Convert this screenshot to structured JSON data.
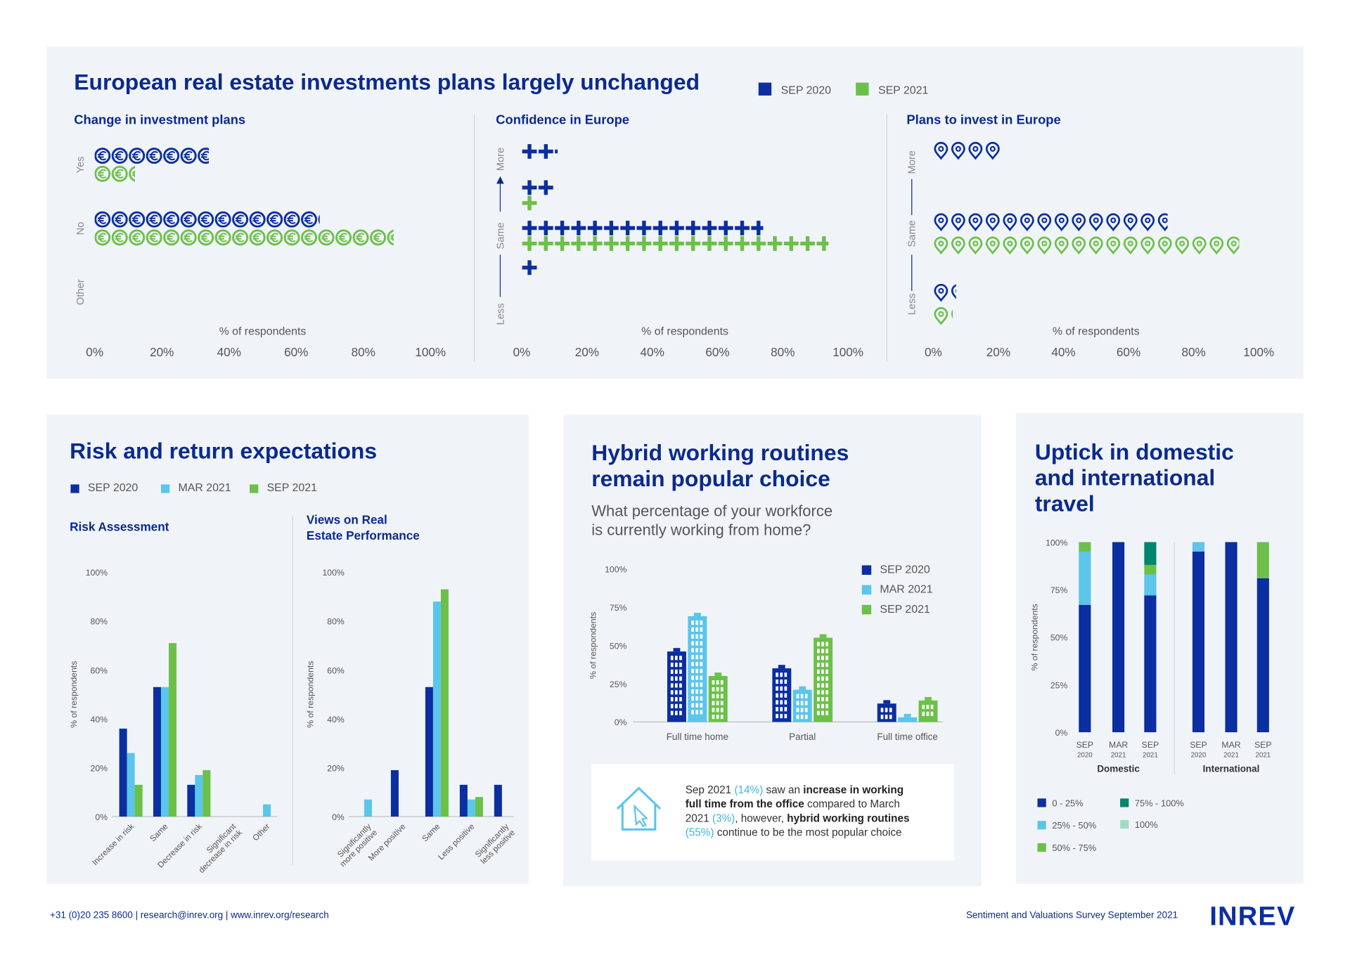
{
  "header": {
    "title": "European real estate investments plans largely unchanged"
  },
  "risk_title": "Risk and return expectations",
  "footer": {
    "contact": "+31 (0)20 235 8600 | research@inrev.org | www.inrev.org/research",
    "survey": "Sentiment and Valuations Survey September 2021",
    "logo": "INREV"
  },
  "chart_data": [
    {
      "type": "pictograph",
      "title": "Change in investment plans",
      "icon": "euro",
      "categories": [
        "Yes",
        "No",
        "Other"
      ],
      "series": [
        {
          "name": "SEP 2020",
          "color": "#0b2ea0",
          "values": [
            34,
            67,
            0
          ]
        },
        {
          "name": "SEP 2021",
          "color": "#6cc04a",
          "values": [
            12,
            89,
            0
          ]
        }
      ],
      "xlim": [
        0,
        100
      ],
      "xticks": [
        {
          "value": 0,
          "label": "0%"
        },
        {
          "value": 20,
          "label": "20%"
        },
        {
          "value": 40,
          "label": "40%"
        },
        {
          "value": 60,
          "label": "60%"
        },
        {
          "value": 80,
          "label": "80%"
        },
        {
          "value": 100,
          "label": "100%"
        }
      ],
      "xlabel": "% of respondents"
    },
    {
      "type": "pictograph",
      "title": "Confidence in Europe",
      "icon": "plus",
      "categories": [
        "More",
        null,
        "Same",
        null,
        "Less"
      ],
      "series": [
        {
          "color": "#0b2ea0",
          "values": [
            11,
            10,
            74,
            5,
            0
          ]
        },
        {
          "color": "#6cc04a",
          "values": [
            0,
            5,
            94,
            0,
            0
          ]
        }
      ],
      "xlim": [
        0,
        100
      ],
      "xticks": [
        {
          "value": 0,
          "label": "0%"
        },
        {
          "value": 20,
          "label": "20%"
        },
        {
          "value": 40,
          "label": "40%"
        },
        {
          "value": 60,
          "label": "60%"
        },
        {
          "value": 80,
          "label": "80%"
        },
        {
          "value": 100,
          "label": "100%"
        }
      ],
      "xlabel": "% of respondents"
    },
    {
      "type": "pictograph",
      "title": "Plans to invest in Europe",
      "icon": "pin",
      "categories": [
        "More",
        "Same",
        "Less"
      ],
      "series": [
        {
          "color": "#0b2ea0",
          "values": [
            21,
            72,
            7
          ]
        },
        {
          "color": "#6cc04a",
          "values": [
            0,
            94,
            6
          ]
        }
      ],
      "xlim": [
        0,
        100
      ],
      "xticks": [
        {
          "value": 0,
          "label": "0%"
        },
        {
          "value": 20,
          "label": "20%"
        },
        {
          "value": 40,
          "label": "40%"
        },
        {
          "value": 60,
          "label": "60%"
        },
        {
          "value": 80,
          "label": "80%"
        },
        {
          "value": 100,
          "label": "100%"
        }
      ],
      "xlabel": "% of respondents"
    },
    {
      "type": "bar",
      "title": [
        "Risk Assessment"
      ],
      "categories": [
        "Increase in risk",
        "Same",
        "Decrease in risk",
        [
          "Significant",
          "decrease in risk"
        ],
        "Other"
      ],
      "series": [
        {
          "name": "SEP 2020",
          "color": "#0b2ea0",
          "values": [
            36,
            53,
            13,
            0,
            0
          ]
        },
        {
          "name": "MAR 2021",
          "color": "#5bc5ea",
          "values": [
            26,
            53,
            17,
            0,
            5
          ]
        },
        {
          "name": "SEP 2021",
          "color": "#6cc04a",
          "values": [
            13,
            71,
            19,
            0,
            0
          ]
        }
      ],
      "ylim": [
        0,
        100
      ],
      "yticks": [
        {
          "value": 0,
          "label": "0%"
        },
        {
          "value": 20,
          "label": "20%"
        },
        {
          "value": 40,
          "label": "40%"
        },
        {
          "value": 60,
          "label": "60%"
        },
        {
          "value": 80,
          "label": "80%"
        },
        {
          "value": 100,
          "label": "100%"
        }
      ],
      "ylabel": "% of respondents"
    },
    {
      "type": "bar",
      "title": [
        "Views on Real",
        "Estate Performance"
      ],
      "categories": [
        [
          "Significantly",
          "more positive"
        ],
        "More positive",
        "Same",
        "Less positive",
        [
          "Significantly",
          "less positive"
        ]
      ],
      "series": [
        {
          "color": "#0b2ea0",
          "values": [
            0,
            19,
            53,
            13,
            13
          ]
        },
        {
          "color": "#5bc5ea",
          "values": [
            7,
            0,
            88,
            7,
            0
          ]
        },
        {
          "color": "#6cc04a",
          "values": [
            0,
            0,
            93,
            8,
            0
          ]
        }
      ],
      "ylim": [
        0,
        100
      ],
      "yticks": [
        {
          "value": 0,
          "label": "0%"
        },
        {
          "value": 20,
          "label": "20%"
        },
        {
          "value": 40,
          "label": "40%"
        },
        {
          "value": 60,
          "label": "60%"
        },
        {
          "value": 80,
          "label": "80%"
        },
        {
          "value": 100,
          "label": "100%"
        }
      ],
      "ylabel": "% of respondents"
    },
    {
      "type": "building",
      "title": [
        "Hybrid working routines",
        "remain popular choice"
      ],
      "subtitle": [
        "What percentage of your workforce",
        "is currently working from home?"
      ],
      "categories": [
        "Full time home",
        "Partial",
        "Full time office"
      ],
      "series": [
        {
          "name": "SEP 2020",
          "color": "#0b2ea0",
          "values": [
            46,
            35,
            12
          ]
        },
        {
          "name": "MAR 2021",
          "color": "#5bc5ea",
          "values": [
            69,
            21,
            3
          ]
        },
        {
          "name": "SEP 2021",
          "color": "#6cc04a",
          "values": [
            30,
            55,
            14
          ]
        }
      ],
      "ylim": [
        0,
        100
      ],
      "yticks": [
        {
          "value": 0,
          "label": "0%"
        },
        {
          "value": 25,
          "label": "25%"
        },
        {
          "value": 50,
          "label": "50%"
        },
        {
          "value": 75,
          "label": "75%"
        },
        {
          "value": 100,
          "label": "100%"
        }
      ],
      "ylabel": "% of respondents",
      "callout": [
        [
          {
            "text": "Sep 2021 ",
            "style": "normal"
          },
          {
            "text": "(14%)",
            "style": "highlight"
          },
          {
            "text": " saw an ",
            "style": "normal"
          },
          {
            "text": "increase in working",
            "style": "bold"
          }
        ],
        [
          {
            "text": "full time from the office",
            "style": "bold"
          },
          {
            "text": " compared to March",
            "style": "normal"
          }
        ],
        [
          {
            "text": "2021 ",
            "style": "normal"
          },
          {
            "text": "(3%)",
            "style": "highlight"
          },
          {
            "text": ", however, ",
            "style": "normal"
          },
          {
            "text": "hybrid working routines",
            "style": "bold"
          }
        ],
        [
          {
            "text": "(55%)",
            "style": "highlight"
          },
          {
            "text": " continue to be the most popular choice",
            "style": "normal"
          }
        ]
      ]
    },
    {
      "type": "stacked",
      "title": [
        "Uptick in domestic",
        "and international",
        "travel"
      ],
      "categories": [
        [
          "SEP",
          "2020"
        ],
        [
          "MAR",
          "2021"
        ],
        [
          "SEP",
          "2021"
        ],
        [
          "SEP",
          "2020"
        ],
        [
          "MAR",
          "2021"
        ],
        [
          "SEP",
          "2021"
        ]
      ],
      "groups": [
        "Domestic",
        "International"
      ],
      "series": [
        {
          "name": "0 - 25%",
          "color": "#0b2ea0",
          "values": [
            67,
            100,
            72,
            95,
            100,
            81
          ]
        },
        {
          "name": "25% - 50%",
          "color": "#5bc5ea",
          "values": [
            28,
            0,
            11,
            5,
            0,
            0
          ]
        },
        {
          "name": "50% - 75%",
          "color": "#6cc04a",
          "values": [
            5,
            0,
            5,
            0,
            0,
            19
          ]
        },
        {
          "name": "75% - 100%",
          "color": "#00856f",
          "values": [
            0,
            0,
            12,
            0,
            0,
            0
          ]
        },
        {
          "name": "100%",
          "color": "#a1dcc0",
          "values": [
            0,
            0,
            0,
            0,
            0,
            0
          ]
        }
      ],
      "ylim": [
        0,
        100
      ],
      "yticks": [
        {
          "value": 0,
          "label": "0%"
        },
        {
          "value": 25,
          "label": "25%"
        },
        {
          "value": 50,
          "label": "50%"
        },
        {
          "value": 75,
          "label": "75%"
        },
        {
          "value": 100,
          "label": "100%"
        }
      ],
      "ylabel": "% of respondents"
    }
  ]
}
